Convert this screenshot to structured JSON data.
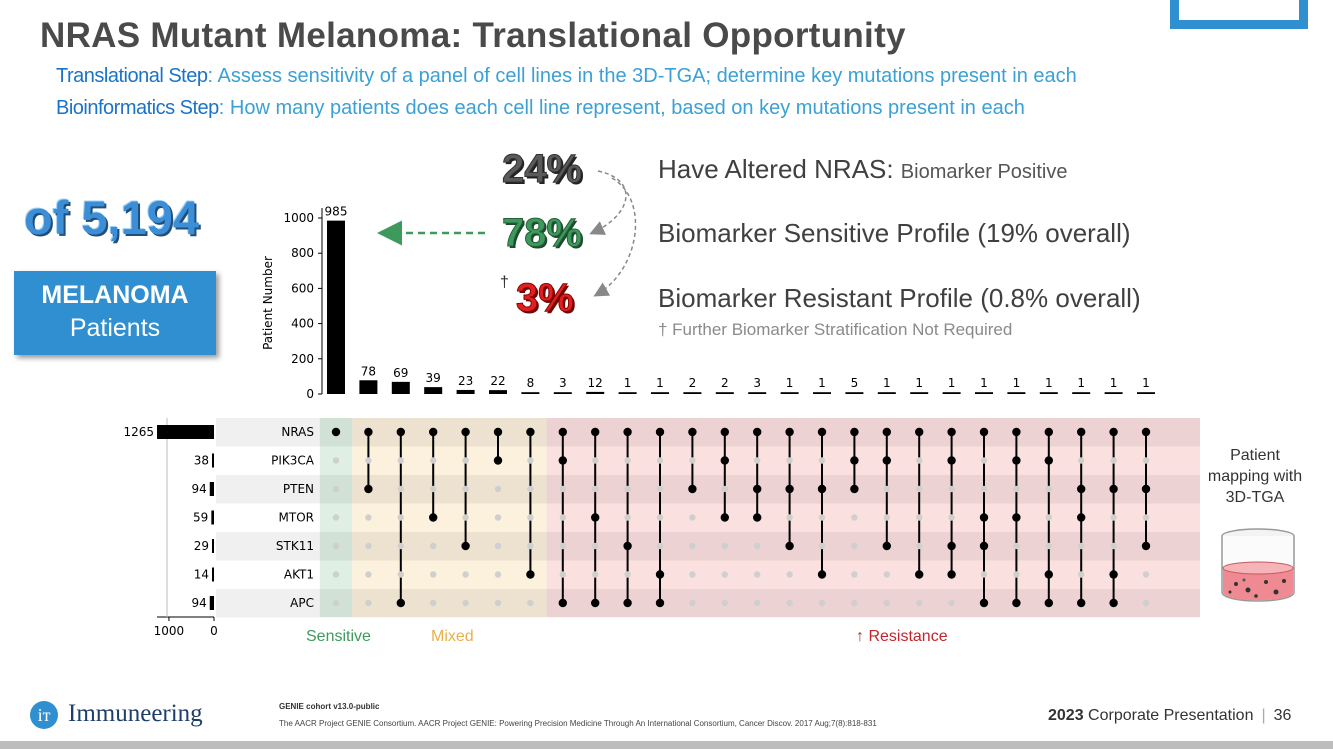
{
  "slide": {
    "title": "NRAS Mutant Melanoma: Translational Opportunity",
    "step1_label": "Translational Step",
    "step1_text": ": Assess sensitivity of a panel of cell lines in the 3D-TGA; determine key mutations present in each",
    "step2_label": "Bioinformatics Step",
    "step2_text": ": How many patients does each cell line represent, based on key mutations present in each",
    "count_text": "of 5,194",
    "melanoma_label": "MELANOMA",
    "patients_label": "Patients",
    "pct_altered": "24%",
    "pct_sensitive": "78%",
    "pct_resistant": "3%",
    "dagger": "†",
    "stmt_altered_main": "Have Altered NRAS: ",
    "stmt_altered_small": "Biomarker Positive",
    "stmt_sensitive": "Biomarker Sensitive Profile (19% overall)",
    "stmt_resistant": "Biomarker Resistant Profile (0.8% overall)",
    "footnote": "† Further Biomarker Stratification Not Required",
    "group_sensitive": "Sensitive",
    "group_mixed": "Mixed",
    "group_resistance": "↑ Resistance",
    "patient_mapping": "Patient mapping with 3D-TGA",
    "logo_text": "Immuneering",
    "logo_glyph": "iт",
    "cite_title": "GENIE cohort v13.0-public",
    "cite_body": "The AACR Project GENIE Consortium. AACR Project GENIE: Powering Precision Medicine Through An International Consortium, Cancer Discov. 2017 Aug;7(8):818-831",
    "corp_year": "2023",
    "corp_text": " Corporate Presentation",
    "page_number": "36"
  },
  "colors": {
    "title": "#4a4a4a",
    "subtitle": "#3aa0d6",
    "accent_blue": "#2f8fd0",
    "sensitive_green": "#3d9a5c",
    "resistant_red": "#c0262d",
    "mixed_orange": "#e8b04a",
    "sensitive_bg": "#dff0e3",
    "mixed_bg": "#fbf1dc",
    "resistance_bg": "#fbe0e0"
  },
  "chart_data": {
    "type": "upset",
    "intersection_axis": {
      "ylabel": "Patient Number",
      "ylim": [
        0,
        1050
      ],
      "ticks": [
        0,
        200,
        400,
        600,
        800,
        1000
      ]
    },
    "set_axis": {
      "xlim": [
        0,
        1265
      ],
      "ticks": [
        1000,
        0
      ],
      "sets": [
        "NRAS",
        "PIK3CA",
        "PTEN",
        "MTOR",
        "STK11",
        "AKT1",
        "APC"
      ],
      "set_sizes": [
        1265,
        38,
        94,
        59,
        29,
        14,
        94
      ],
      "set_size_labels": [
        "1265",
        "38",
        "94",
        "59",
        "29",
        "14",
        "94"
      ]
    },
    "intersections": [
      {
        "count": 985,
        "label": "985",
        "sets": [
          "NRAS"
        ],
        "group": "sensitive"
      },
      {
        "count": 78,
        "label": "78",
        "sets": [
          "NRAS",
          "PTEN"
        ],
        "group": "mixed"
      },
      {
        "count": 69,
        "label": "69",
        "sets": [
          "NRAS",
          "APC"
        ],
        "group": "mixed"
      },
      {
        "count": 39,
        "label": "39",
        "sets": [
          "NRAS",
          "MTOR"
        ],
        "group": "mixed"
      },
      {
        "count": 23,
        "label": "23",
        "sets": [
          "NRAS",
          "STK11"
        ],
        "group": "mixed"
      },
      {
        "count": 22,
        "label": "22",
        "sets": [
          "NRAS",
          "PIK3CA"
        ],
        "group": "mixed"
      },
      {
        "count": 8,
        "label": "8",
        "sets": [
          "NRAS",
          "AKT1"
        ],
        "group": "mixed"
      },
      {
        "count": 3,
        "label": "3",
        "sets": [
          "NRAS",
          "PIK3CA",
          "APC"
        ],
        "group": "resistance"
      },
      {
        "count": 12,
        "label": "12",
        "sets": [
          "NRAS",
          "MTOR",
          "APC"
        ],
        "group": "resistance"
      },
      {
        "count": 1,
        "label": "1",
        "sets": [
          "NRAS",
          "STK11",
          "APC"
        ],
        "group": "resistance"
      },
      {
        "count": 1,
        "label": "1",
        "sets": [
          "NRAS",
          "AKT1",
          "APC"
        ],
        "group": "resistance"
      },
      {
        "count": 2,
        "label": "2",
        "sets": [
          "NRAS",
          "PTEN"
        ],
        "group": "resistance"
      },
      {
        "count": 2,
        "label": "2",
        "sets": [
          "NRAS",
          "PIK3CA",
          "MTOR"
        ],
        "group": "resistance"
      },
      {
        "count": 3,
        "label": "3",
        "sets": [
          "NRAS",
          "PTEN",
          "MTOR"
        ],
        "group": "resistance"
      },
      {
        "count": 1,
        "label": "1",
        "sets": [
          "NRAS",
          "PTEN",
          "STK11"
        ],
        "group": "resistance"
      },
      {
        "count": 1,
        "label": "1",
        "sets": [
          "NRAS",
          "PTEN",
          "AKT1"
        ],
        "group": "resistance"
      },
      {
        "count": 5,
        "label": "5",
        "sets": [
          "NRAS",
          "PIK3CA",
          "PTEN"
        ],
        "group": "resistance"
      },
      {
        "count": 1,
        "label": "1",
        "sets": [
          "NRAS",
          "PIK3CA",
          "STK11"
        ],
        "group": "resistance"
      },
      {
        "count": 1,
        "label": "1",
        "sets": [
          "NRAS",
          "AKT1"
        ],
        "group": "resistance"
      },
      {
        "count": 1,
        "label": "1",
        "sets": [
          "NRAS",
          "PIK3CA",
          "STK11",
          "AKT1"
        ],
        "group": "resistance"
      },
      {
        "count": 1,
        "label": "1",
        "sets": [
          "NRAS",
          "MTOR",
          "STK11",
          "APC"
        ],
        "group": "resistance"
      },
      {
        "count": 1,
        "label": "1",
        "sets": [
          "NRAS",
          "PIK3CA",
          "MTOR",
          "APC"
        ],
        "group": "resistance"
      },
      {
        "count": 1,
        "label": "1",
        "sets": [
          "NRAS",
          "PIK3CA",
          "AKT1",
          "APC"
        ],
        "group": "resistance"
      },
      {
        "count": 1,
        "label": "1",
        "sets": [
          "NRAS",
          "PTEN",
          "MTOR",
          "APC"
        ],
        "group": "resistance"
      },
      {
        "count": 1,
        "label": "1",
        "sets": [
          "NRAS",
          "PTEN",
          "AKT1",
          "APC"
        ],
        "group": "resistance"
      },
      {
        "count": 1,
        "label": "1",
        "sets": [
          "NRAS",
          "PTEN",
          "STK11"
        ],
        "group": "resistance"
      }
    ]
  }
}
